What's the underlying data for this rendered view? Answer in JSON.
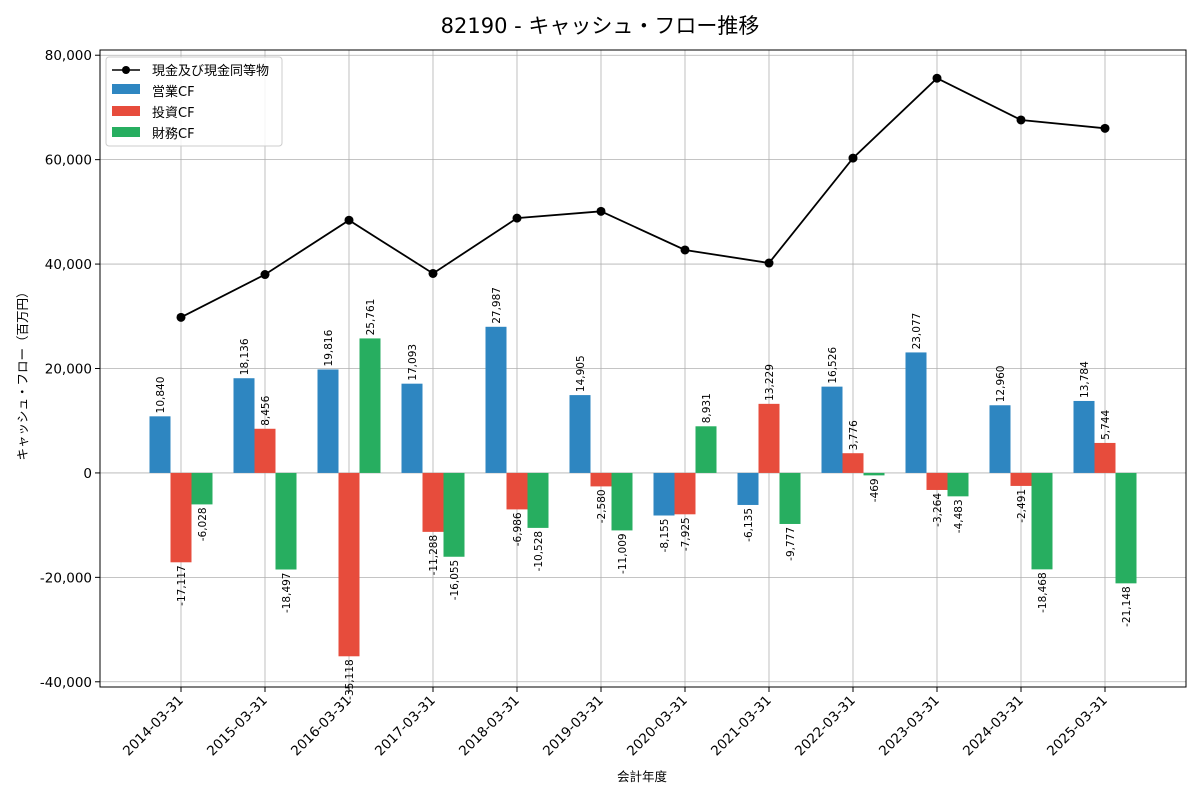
{
  "chart_data": {
    "type": "bar",
    "title": "82190 - キャッシュ・フロー推移",
    "xlabel": "会計年度",
    "ylabel": "キャッシュ・フロー（百万円）",
    "ylim": [
      -41000,
      81000
    ],
    "yticks": [
      -40000,
      -20000,
      0,
      20000,
      40000,
      60000,
      80000
    ],
    "ytick_labels": [
      "-40,000",
      "-20,000",
      "0",
      "20,000",
      "40,000",
      "60,000",
      "80,000"
    ],
    "grid": true,
    "legend_position": "top-left",
    "categories": [
      "2014-03-31",
      "2015-03-31",
      "2016-03-31",
      "2017-03-31",
      "2018-03-31",
      "2019-03-31",
      "2020-03-31",
      "2021-03-31",
      "2022-03-31",
      "2023-03-31",
      "2024-03-31",
      "2025-03-31"
    ],
    "series": [
      {
        "name": "営業CF",
        "kind": "bar",
        "color": "#2e86c1",
        "values": [
          10840,
          18136,
          19816,
          17093,
          27987,
          14905,
          -8155,
          -6135,
          16526,
          23077,
          12960,
          13784
        ],
        "labels": [
          "10,840",
          "18,136",
          "19,816",
          "17,093",
          "27,987",
          "14,905",
          "-8,155",
          "-6,135",
          "16,526",
          "23,077",
          "12,960",
          "13,784"
        ]
      },
      {
        "name": "投資CF",
        "kind": "bar",
        "color": "#e74c3c",
        "values": [
          -17117,
          8456,
          -35118,
          -11288,
          -6986,
          -2580,
          -7925,
          13229,
          3776,
          -3264,
          -2491,
          5744
        ],
        "labels": [
          "-17,117",
          "8,456",
          "-35,118",
          "-11,288",
          "-6,986",
          "-2,580",
          "-7,925",
          "13,229",
          "3,776",
          "-3,264",
          "-2,491",
          "5,744"
        ]
      },
      {
        "name": "財務CF",
        "kind": "bar",
        "color": "#27ae60",
        "values": [
          -6028,
          -18497,
          25761,
          -16055,
          -10528,
          -11009,
          8931,
          -9777,
          -469,
          -4483,
          -18468,
          -21148
        ],
        "labels": [
          "-6,028",
          "-18,497",
          "25,761",
          "-16,055",
          "-10,528",
          "-11,009",
          "8,931",
          "-9,777",
          "-469",
          "-4,483",
          "-18,468",
          "-21,148"
        ]
      },
      {
        "name": "現金及び現金同等物",
        "kind": "line",
        "color": "#000000",
        "values": [
          29800,
          38000,
          48400,
          38200,
          48800,
          50100,
          42700,
          40200,
          60300,
          75600,
          67600,
          66000
        ]
      }
    ]
  }
}
